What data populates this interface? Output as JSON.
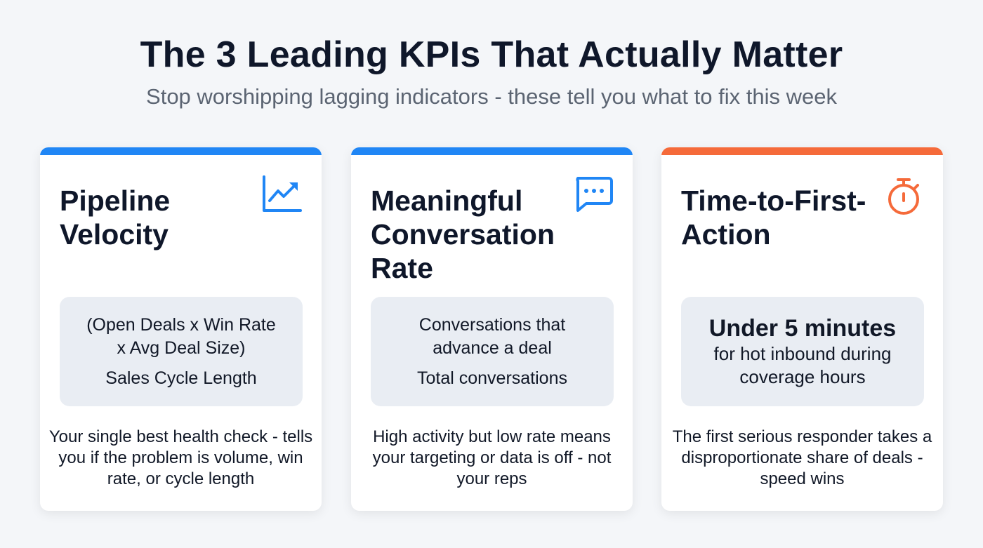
{
  "header": {
    "title": "The 3 Leading KPIs That Actually Matter",
    "subtitle": "Stop worshipping lagging indicators - these tell you what to fix this week"
  },
  "colors": {
    "blue": "#2086f5",
    "orange": "#f56a3a"
  },
  "cards": [
    {
      "title": "Pipeline Velocity",
      "icon": "trending-up-chart-icon",
      "box": [
        "(Open Deals x Win Rate",
        "x Avg Deal Size)",
        "Sales Cycle Length"
      ],
      "description": "Your single best health check - tells you if the problem is volume, win rate, or cycle length"
    },
    {
      "title": "Meaningful Conversation Rate",
      "icon": "chat-bubble-icon",
      "box": [
        "Conversations that",
        "advance a deal",
        "Total conversations"
      ],
      "description": "High activity but low rate means your targeting or data is off - not your reps"
    },
    {
      "title": "Time-to-First-Action",
      "icon": "stopwatch-icon",
      "box": [
        "Under 5 minutes",
        "for hot inbound during coverage hours"
      ],
      "description": "The first serious responder takes a disproportionate share of deals - speed wins"
    }
  ]
}
